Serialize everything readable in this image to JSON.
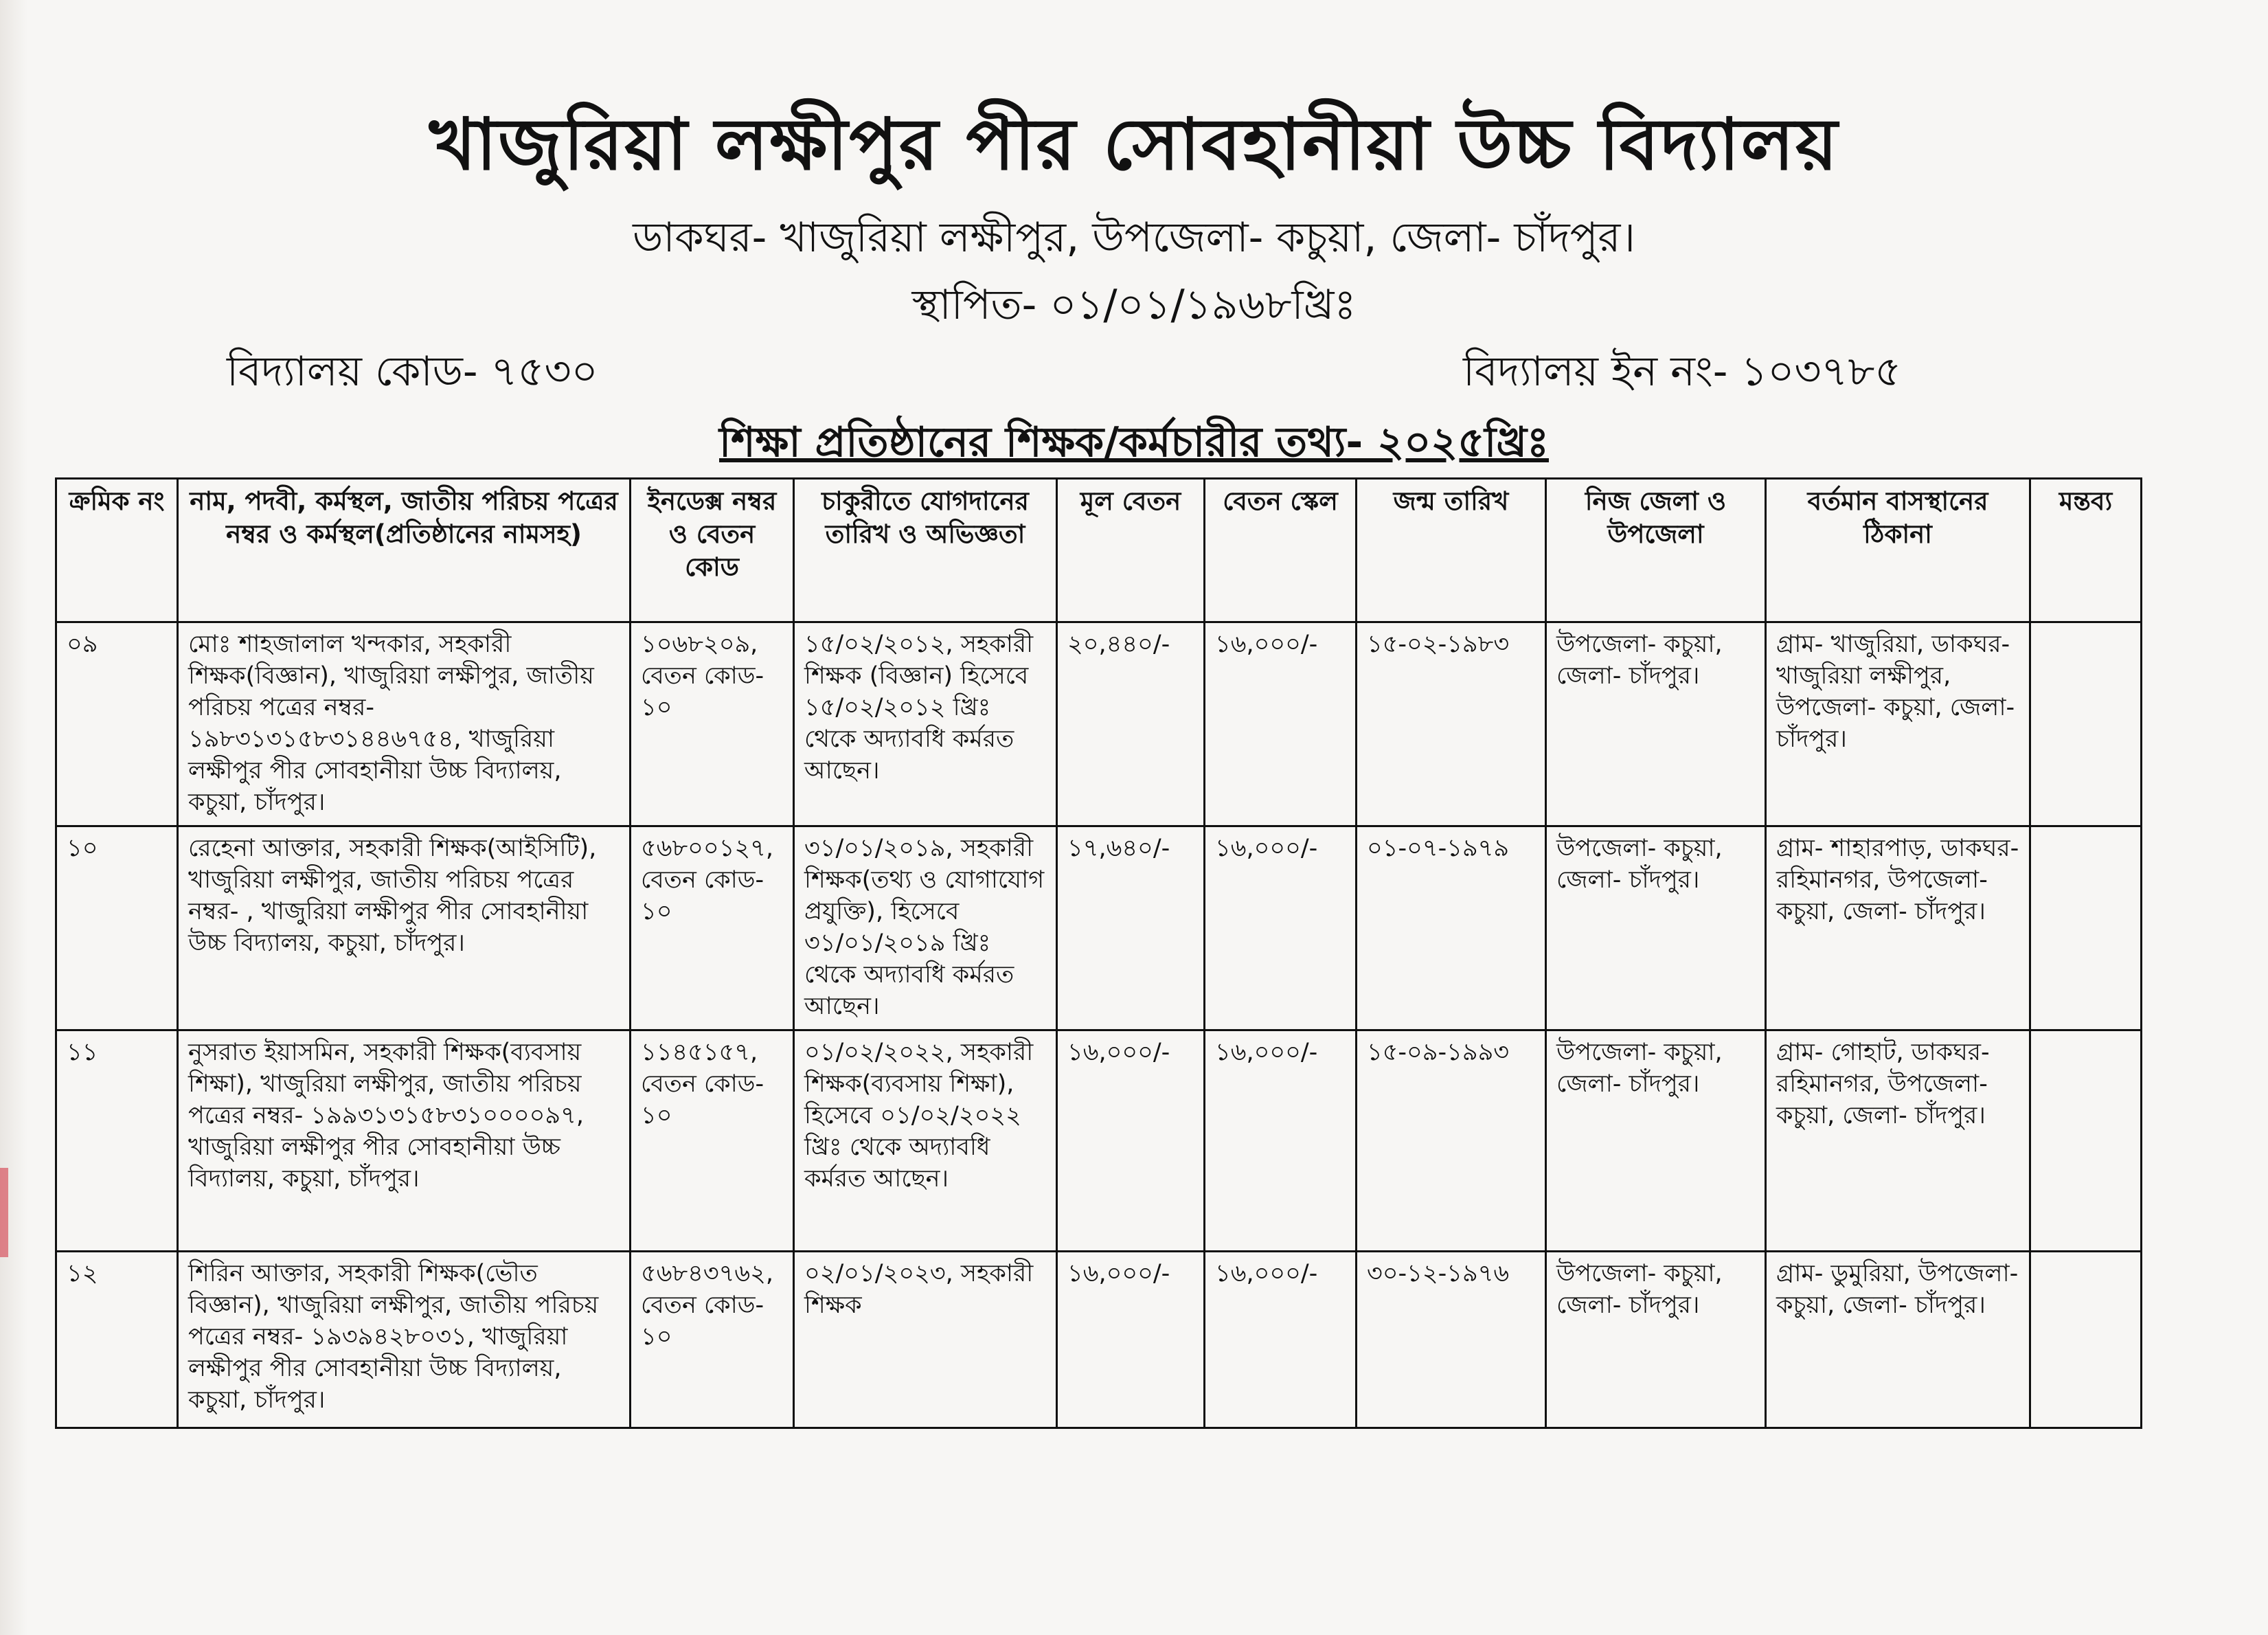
{
  "header": {
    "school_name": "খাজুরিয়া লক্ষীপুর পীর সোবহানীয়া উচ্চ বিদ্যালয়",
    "address": "ডাকঘর- খাজুরিয়া লক্ষীপুর, উপজেলা- কচুয়া, জেলা- চাঁদপুর।",
    "established": "স্থাপিত- ০১/০১/১৯৬৮খ্রিঃ",
    "school_code": "বিদ্যালয় কোড- ৭৫৩০",
    "school_ein": "বিদ্যালয় ইন নং- ১০৩৭৮৫",
    "heading": "শিক্ষা প্রতিষ্ঠানের শিক্ষক/কর্মচারীর তথ্য- ২০২৫খ্রিঃ"
  },
  "table": {
    "columns": [
      "ক্রমিক নং",
      "নাম, পদবী, কর্মস্থল, জাতীয় পরিচয় পত্রের নম্বর ও কর্মস্থল(প্রতিষ্ঠানের নামসহ)",
      "ইনডেক্স নম্বর ও বেতন কোড",
      "চাকুরীতে যোগদানের তারিখ ও অভিজ্ঞতা",
      "মূল বেতন",
      "বেতন স্কেল",
      "জন্ম তারিখ",
      "নিজ জেলা ও উপজেলা",
      "বর্তমান বাসস্থানের ঠিকানা",
      "মন্তব্য"
    ],
    "rows": [
      {
        "serial": "০৯",
        "details": "মোঃ শাহজালাল খন্দকার, সহকারী শিক্ষক(বিজ্ঞান), খাজুরিয়া লক্ষীপুর, জাতীয় পরিচয় পত্রের নম্বর- ১৯৮৩১৩১৫৮৩১৪৪৬৭৫৪, খাজুরিয়া লক্ষীপুর পীর সোবহানীয়া উচ্চ বিদ্যালয়, কচুয়া, চাঁদপুর।",
        "index": "১০৬৮২০৯, বেতন কোড- ১০",
        "joining": "১৫/০২/২০১২, সহকারী শিক্ষক (বিজ্ঞান) হিসেবে ১৫/০২/২০১২ খ্রিঃ থেকে অদ্যাবধি কর্মরত আছেন।",
        "basic_pay": "২০,৪৪০/-",
        "scale": "১৬,০০০/-",
        "dob": "১৫-০২-১৯৮৩",
        "home": "উপজেলা- কচুয়া, জেলা- চাঁদপুর।",
        "address": "গ্রাম- খাজুরিয়া, ডাকঘর- খাজুরিয়া লক্ষীপুর, উপজেলা- কচুয়া, জেলা- চাঁদপুর।",
        "remarks": ""
      },
      {
        "serial": "১০",
        "details": "রেহেনা আক্তার, সহকারী শিক্ষক(আইসিটি), খাজুরিয়া লক্ষীপুর, জাতীয় পরিচয় পত্রের নম্বর- , খাজুরিয়া লক্ষীপুর পীর সোবহানীয়া উচ্চ বিদ্যালয়, কচুয়া, চাঁদপুর।",
        "index": "৫৬৮০০১২৭, বেতন কোড- ১০",
        "joining": "৩১/০১/২০১৯, সহকারী শিক্ষক(তথ্য ও যোগাযোগ প্রযুক্তি), হিসেবে ৩১/০১/২০১৯ খ্রিঃ থেকে অদ্যাবধি কর্মরত আছেন।",
        "basic_pay": "১৭,৬৪০/-",
        "scale": "১৬,০০০/-",
        "dob": "০১-০৭-১৯৭৯",
        "home": "উপজেলা- কচুয়া, জেলা- চাঁদপুর।",
        "address": "গ্রাম- শাহারপাড়, ডাকঘর- রহিমানগর, উপজেলা- কচুয়া, জেলা- চাঁদপুর।",
        "remarks": ""
      },
      {
        "serial": "১১",
        "details": "নুসরাত ইয়াসমিন, সহকারী শিক্ষক(ব্যবসায় শিক্ষা), খাজুরিয়া লক্ষীপুর, জাতীয় পরিচয় পত্রের নম্বর- ১৯৯৩১৩১৫৮৩১০০০০৯৭, খাজুরিয়া লক্ষীপুর পীর সোবহানীয়া উচ্চ বিদ্যালয়, কচুয়া, চাঁদপুর।",
        "index": "১১৪৫১৫৭, বেতন কোড- ১০",
        "joining": "০১/০২/২০২২, সহকারী শিক্ষক(ব্যবসায় শিক্ষা), হিসেবে ০১/০২/২০২২ খ্রিঃ থেকে অদ্যাবধি কর্মরত আছেন।",
        "basic_pay": "১৬,০০০/-",
        "scale": "১৬,০০০/-",
        "dob": "১৫-০৯-১৯৯৩",
        "home": "উপজেলা- কচুয়া, জেলা- চাঁদপুর।",
        "address": "গ্রাম- গোহাট, ডাকঘর- রহিমানগর, উপজেলা- কচুয়া, জেলা- চাঁদপুর।",
        "remarks": ""
      },
      {
        "serial": "১২",
        "details": "শিরিন আক্তার, সহকারী শিক্ষক(ভৌত বিজ্ঞান), খাজুরিয়া লক্ষীপুর, জাতীয় পরিচয় পত্রের নম্বর- ১৯৩৯৪২৮০৩১, খাজুরিয়া লক্ষীপুর পীর সোবহানীয়া উচ্চ বিদ্যালয়, কচুয়া, চাঁদপুর।",
        "index": "৫৬৮৪৩৭৬২, বেতন কোড- ১০",
        "joining": "০২/০১/২০২৩, সহকারী শিক্ষক",
        "basic_pay": "১৬,০০০/-",
        "scale": "১৬,০০০/-",
        "dob": "৩০-১২-১৯৭৬",
        "home": "উপজেলা- কচুয়া, জেলা- চাঁদপুর।",
        "address": "গ্রাম- ডুমুরিয়া, উপজেলা- কচুয়া, জেলা- চাঁদপুর।",
        "remarks": ""
      }
    ]
  }
}
